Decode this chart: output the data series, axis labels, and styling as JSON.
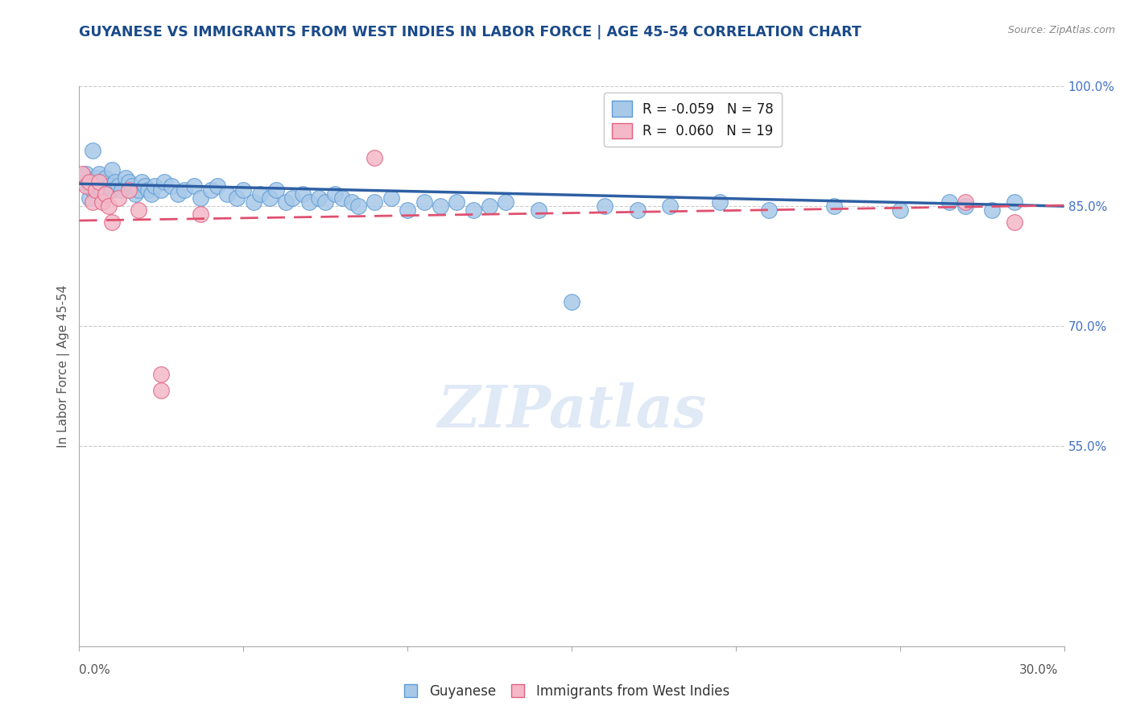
{
  "title": "GUYANESE VS IMMIGRANTS FROM WEST INDIES IN LABOR FORCE | AGE 45-54 CORRELATION CHART",
  "source": "Source: ZipAtlas.com",
  "ylabel": "In Labor Force | Age 45-54",
  "xlim": [
    0.0,
    0.3
  ],
  "ylim": [
    0.3,
    1.0
  ],
  "ytick_labels_right": [
    "100.0%",
    "85.0%",
    "70.0%",
    "55.0%"
  ],
  "ytick_positions_right": [
    1.0,
    0.85,
    0.7,
    0.55
  ],
  "blue_color": "#a8c8e8",
  "blue_edge_color": "#5b9bd5",
  "pink_color": "#f4b8c8",
  "pink_edge_color": "#e06080",
  "blue_line_color": "#2e5fa3",
  "pink_line_color": "#e05070",
  "blue_R": -0.059,
  "blue_N": 78,
  "pink_R": 0.06,
  "pink_N": 19,
  "legend_label_blue": "Guyanese",
  "legend_label_pink": "Immigrants from West Indies",
  "watermark": "ZIPatlas",
  "background_color": "#ffffff",
  "grid_color": "#cccccc",
  "blue_trend_y0": 0.878,
  "blue_trend_y1": 0.85,
  "pink_trend_y0": 0.832,
  "pink_trend_y1": 0.851,
  "blue_scatter_x": [
    0.001,
    0.002,
    0.003,
    0.003,
    0.004,
    0.004,
    0.005,
    0.005,
    0.006,
    0.006,
    0.007,
    0.007,
    0.008,
    0.008,
    0.009,
    0.01,
    0.01,
    0.011,
    0.012,
    0.013,
    0.014,
    0.015,
    0.016,
    0.017,
    0.018,
    0.019,
    0.02,
    0.021,
    0.022,
    0.023,
    0.025,
    0.026,
    0.028,
    0.03,
    0.032,
    0.035,
    0.037,
    0.04,
    0.042,
    0.045,
    0.048,
    0.05,
    0.053,
    0.055,
    0.058,
    0.06,
    0.063,
    0.065,
    0.068,
    0.07,
    0.073,
    0.075,
    0.078,
    0.08,
    0.083,
    0.085,
    0.09,
    0.095,
    0.1,
    0.105,
    0.11,
    0.115,
    0.12,
    0.125,
    0.13,
    0.14,
    0.15,
    0.16,
    0.17,
    0.18,
    0.195,
    0.21,
    0.23,
    0.25,
    0.265,
    0.27,
    0.278,
    0.285
  ],
  "blue_scatter_y": [
    0.88,
    0.89,
    0.875,
    0.86,
    0.87,
    0.92,
    0.885,
    0.87,
    0.89,
    0.875,
    0.88,
    0.87,
    0.885,
    0.865,
    0.875,
    0.895,
    0.87,
    0.88,
    0.875,
    0.87,
    0.885,
    0.88,
    0.875,
    0.865,
    0.87,
    0.88,
    0.875,
    0.87,
    0.865,
    0.875,
    0.87,
    0.88,
    0.875,
    0.865,
    0.87,
    0.875,
    0.86,
    0.87,
    0.875,
    0.865,
    0.86,
    0.87,
    0.855,
    0.865,
    0.86,
    0.87,
    0.855,
    0.86,
    0.865,
    0.855,
    0.86,
    0.855,
    0.865,
    0.86,
    0.855,
    0.85,
    0.855,
    0.86,
    0.845,
    0.855,
    0.85,
    0.855,
    0.845,
    0.85,
    0.855,
    0.845,
    0.73,
    0.85,
    0.845,
    0.85,
    0.855,
    0.845,
    0.85,
    0.845,
    0.855,
    0.85,
    0.845,
    0.855
  ],
  "pink_scatter_x": [
    0.001,
    0.002,
    0.003,
    0.004,
    0.005,
    0.006,
    0.007,
    0.008,
    0.009,
    0.01,
    0.012,
    0.015,
    0.018,
    0.025,
    0.025,
    0.037,
    0.09,
    0.27,
    0.285
  ],
  "pink_scatter_y": [
    0.89,
    0.875,
    0.88,
    0.855,
    0.87,
    0.88,
    0.855,
    0.865,
    0.85,
    0.83,
    0.86,
    0.87,
    0.845,
    0.62,
    0.64,
    0.84,
    0.91,
    0.855,
    0.83
  ]
}
